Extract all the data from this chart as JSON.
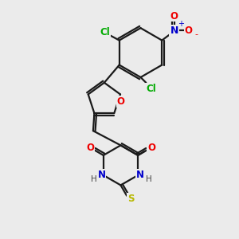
{
  "bg_color": "#ebebeb",
  "bond_color": "#1a1a1a",
  "line_width": 1.6,
  "atom_colors": {
    "O": "#ee0000",
    "N": "#0000cc",
    "S": "#b8b800",
    "Cl": "#00aa00",
    "H": "#444444",
    "C": "#1a1a1a"
  },
  "font_size_atom": 8.5,
  "font_size_charge": 7.5,
  "font_size_h": 7.5,
  "dbl_off": 0.09
}
